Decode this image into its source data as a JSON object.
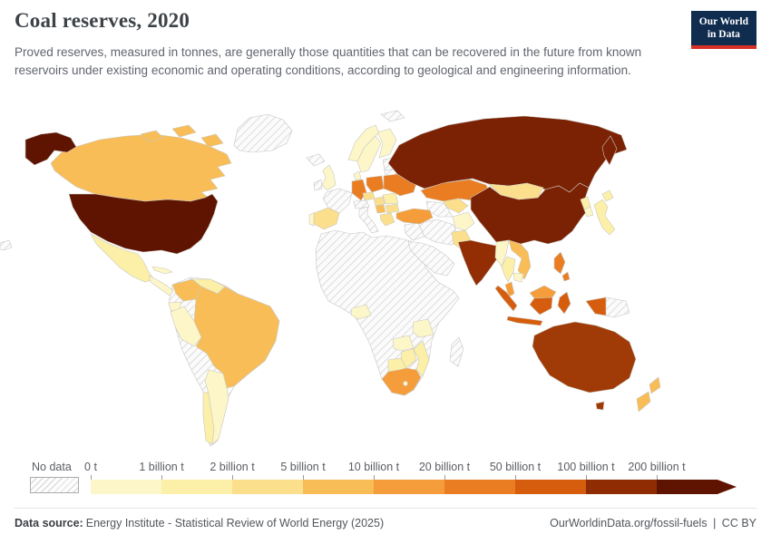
{
  "header": {
    "title": "Coal reserves, 2020",
    "subtitle": "Proved reserves, measured in tonnes, are generally those quantities that can be recovered in the future from known reservoirs under existing economic and operating conditions, according to geological and engineering information.",
    "logo": {
      "line1": "Our World",
      "line2": "in Data"
    }
  },
  "footer": {
    "source_label": "Data source:",
    "source_text": "Energy Institute - Statistical Review of World Energy (2025)",
    "link_text": "OurWorldinData.org/fossil-fuels",
    "license_separator": "|",
    "license_text": "CC BY"
  },
  "chart_data": {
    "type": "choropleth",
    "title": "Coal reserves, 2020",
    "unit": "tonnes",
    "legend": {
      "no_data_label": "No data",
      "tick_labels": [
        "0 t",
        "1 billion t",
        "2 billion t",
        "5 billion t",
        "10 billion t",
        "20 billion t",
        "50 billion t",
        "100 billion t",
        "200 billion t"
      ],
      "colors": [
        "#fdf6c8",
        "#fcefa7",
        "#fbdf8d",
        "#f9bd57",
        "#f59d3a",
        "#ea7d22",
        "#d65d0d",
        "#8f2c04",
        "#5f1401"
      ]
    },
    "countries": [
      {
        "name": "United States",
        "color": "#5f1401",
        "bucket": "200 billion t and over"
      },
      {
        "name": "Canada",
        "color": "#f9bd57",
        "bucket": "5-10 billion t"
      },
      {
        "name": "Mexico",
        "color": "#fcefa7",
        "bucket": "1-2 billion t"
      },
      {
        "name": "Greenland",
        "color": "no-data",
        "bucket": "No data"
      },
      {
        "name": "Central America",
        "color": "#fdf6c8",
        "bucket": "0-1 billion t"
      },
      {
        "name": "Cuba",
        "color": "#fdf6c8",
        "bucket": "0-1 billion t"
      },
      {
        "name": "Colombia",
        "color": "#f9bd57",
        "bucket": "5-10 billion t"
      },
      {
        "name": "Venezuela",
        "color": "#fcefa7",
        "bucket": "1-2 billion t"
      },
      {
        "name": "Ecuador",
        "color": "#fdf6c8",
        "bucket": "0-1 billion t"
      },
      {
        "name": "Peru",
        "color": "#fdf6c8",
        "bucket": "0-1 billion t"
      },
      {
        "name": "Brazil",
        "color": "#f9bd57",
        "bucket": "5-10 billion t"
      },
      {
        "name": "Chile",
        "color": "#fcefa7",
        "bucket": "1-2 billion t"
      },
      {
        "name": "Argentina",
        "color": "#fdf6c8",
        "bucket": "0-1 billion t"
      },
      {
        "name": "United Kingdom",
        "color": "#fdf6c8",
        "bucket": "0-1 billion t"
      },
      {
        "name": "Ireland",
        "color": "no-data",
        "bucket": "No data"
      },
      {
        "name": "Iceland",
        "color": "no-data",
        "bucket": "No data"
      },
      {
        "name": "Norway",
        "color": "#fdf6c8",
        "bucket": "0-1 billion t"
      },
      {
        "name": "Sweden",
        "color": "#fdf6c8",
        "bucket": "0-1 billion t"
      },
      {
        "name": "Finland",
        "color": "#fdf6c8",
        "bucket": "0-1 billion t"
      },
      {
        "name": "Denmark",
        "color": "#fdf6c8",
        "bucket": "0-1 billion t"
      },
      {
        "name": "France",
        "color": "no-data",
        "bucket": "No data"
      },
      {
        "name": "Spain",
        "color": "#fbdf8d",
        "bucket": "2-5 billion t"
      },
      {
        "name": "Portugal",
        "color": "#fdf6c8",
        "bucket": "0-1 billion t"
      },
      {
        "name": "Germany",
        "color": "#ea7d22",
        "bucket": "20-50 billion t"
      },
      {
        "name": "Poland",
        "color": "#ea7d22",
        "bucket": "20-50 billion t"
      },
      {
        "name": "Czechia",
        "color": "#fbdf8d",
        "bucket": "2-5 billion t"
      },
      {
        "name": "Austria",
        "color": "no-data",
        "bucket": "No data"
      },
      {
        "name": "Italy",
        "color": "no-data",
        "bucket": "No data"
      },
      {
        "name": "Hungary",
        "color": "#fbdf8d",
        "bucket": "2-5 billion t"
      },
      {
        "name": "Romania",
        "color": "#fcefa7",
        "bucket": "1-2 billion t"
      },
      {
        "name": "Serbia",
        "color": "#f9bd57",
        "bucket": "5-10 billion t"
      },
      {
        "name": "Bulgaria",
        "color": "#fbdf8d",
        "bucket": "2-5 billion t"
      },
      {
        "name": "Greece",
        "color": "#fbdf8d",
        "bucket": "2-5 billion t"
      },
      {
        "name": "Ukraine",
        "color": "#ea7d22",
        "bucket": "20-50 billion t"
      },
      {
        "name": "Belarus",
        "color": "no-data",
        "bucket": "No data"
      },
      {
        "name": "Baltic states",
        "color": "no-data",
        "bucket": "No data"
      },
      {
        "name": "Turkey",
        "color": "#f59d3a",
        "bucket": "10-20 billion t"
      },
      {
        "name": "Russia",
        "color": "#7c2204",
        "bucket": "100-200 billion t"
      },
      {
        "name": "Kazakhstan",
        "color": "#ea7d22",
        "bucket": "20-50 billion t"
      },
      {
        "name": "Uzbekistan",
        "color": "#fbdf8d",
        "bucket": "2-5 billion t"
      },
      {
        "name": "Turkmenistan",
        "color": "no-data",
        "bucket": "No data"
      },
      {
        "name": "Iran",
        "color": "no-data",
        "bucket": "No data"
      },
      {
        "name": "Iraq",
        "color": "no-data",
        "bucket": "No data"
      },
      {
        "name": "Saudi Arabia",
        "color": "no-data",
        "bucket": "No data"
      },
      {
        "name": "Afghanistan",
        "color": "#fdf6c8",
        "bucket": "0-1 billion t"
      },
      {
        "name": "Pakistan",
        "color": "#fbdf8d",
        "bucket": "2-5 billion t"
      },
      {
        "name": "India",
        "color": "#932d04",
        "bucket": "100-200 billion t"
      },
      {
        "name": "China",
        "color": "#7c2204",
        "bucket": "100-200 billion t"
      },
      {
        "name": "Mongolia",
        "color": "#fbdf8d",
        "bucket": "2-5 billion t"
      },
      {
        "name": "North Korea",
        "color": "#fcefa7",
        "bucket": "1-2 billion t"
      },
      {
        "name": "South Korea",
        "color": "#fdf6c8",
        "bucket": "0-1 billion t"
      },
      {
        "name": "Japan",
        "color": "#fcefa7",
        "bucket": "1-2 billion t"
      },
      {
        "name": "Myanmar",
        "color": "#fdf6c8",
        "bucket": "0-1 billion t"
      },
      {
        "name": "Thailand",
        "color": "#fcefa7",
        "bucket": "1-2 billion t"
      },
      {
        "name": "Vietnam",
        "color": "#f9bd57",
        "bucket": "5-10 billion t"
      },
      {
        "name": "Cambodia",
        "color": "#fdf6c8",
        "bucket": "0-1 billion t"
      },
      {
        "name": "Malaysia",
        "color": "#f59d3a",
        "bucket": "10-20 billion t"
      },
      {
        "name": "Indonesia",
        "color": "#d65d0d",
        "bucket": "20-50 billion t"
      },
      {
        "name": "Philippines",
        "color": "#ea7d22",
        "bucket": "20-50 billion t"
      },
      {
        "name": "Papua New Guinea",
        "color": "no-data",
        "bucket": "No data"
      },
      {
        "name": "Australia",
        "color": "#a03a06",
        "bucket": "100-200 billion t"
      },
      {
        "name": "New Zealand",
        "color": "#f9bd57",
        "bucket": "5-10 billion t"
      },
      {
        "name": "South Africa",
        "color": "#f59d3a",
        "bucket": "10-20 billion t"
      },
      {
        "name": "Lesotho",
        "color": "#fdf6c8",
        "bucket": "0-1 billion t"
      },
      {
        "name": "Botswana",
        "color": "#fcefa7",
        "bucket": "1-2 billion t"
      },
      {
        "name": "Zimbabwe",
        "color": "#fcefa7",
        "bucket": "1-2 billion t"
      },
      {
        "name": "Zambia",
        "color": "#fdf6c8",
        "bucket": "0-1 billion t"
      },
      {
        "name": "Mozambique",
        "color": "#fcefa7",
        "bucket": "1-2 billion t"
      },
      {
        "name": "Tanzania",
        "color": "#fdf6c8",
        "bucket": "0-1 billion t"
      },
      {
        "name": "Nigeria",
        "color": "#fdf6c8",
        "bucket": "0-1 billion t"
      },
      {
        "name": "Madagascar",
        "color": "no-data",
        "bucket": "No data"
      },
      {
        "name": "Svalbard",
        "color": "no-data",
        "bucket": "No data"
      }
    ]
  }
}
